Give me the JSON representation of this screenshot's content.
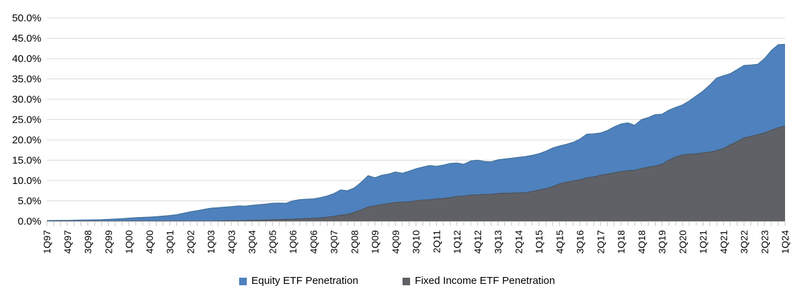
{
  "chart_data": {
    "type": "area",
    "stacked": true,
    "title": "",
    "background": "#ffffff",
    "grid": true,
    "gridline_color": "#d9d9d9",
    "axis_tick_color": "#c6c6c6",
    "text_color": "#000000",
    "categories": [
      "1Q97",
      "2Q97",
      "3Q97",
      "4Q97",
      "1Q98",
      "2Q98",
      "3Q98",
      "4Q98",
      "1Q99",
      "2Q99",
      "3Q99",
      "4Q99",
      "1Q00",
      "2Q00",
      "3Q00",
      "4Q00",
      "1Q01",
      "2Q01",
      "3Q01",
      "4Q01",
      "1Q02",
      "2Q02",
      "3Q02",
      "4Q02",
      "1Q03",
      "2Q03",
      "3Q03",
      "4Q03",
      "1Q04",
      "2Q04",
      "3Q04",
      "4Q04",
      "1Q05",
      "2Q05",
      "3Q05",
      "4Q05",
      "1Q06",
      "2Q06",
      "3Q06",
      "4Q06",
      "1Q07",
      "2Q07",
      "3Q07",
      "4Q07",
      "1Q08",
      "2Q08",
      "3Q08",
      "4Q08",
      "1Q09",
      "2Q09",
      "3Q09",
      "4Q09",
      "1Q10",
      "2Q10",
      "3Q10",
      "4Q10",
      "1Q11",
      "2Q11",
      "3Q11",
      "4Q11",
      "1Q12",
      "2Q12",
      "3Q12",
      "4Q12",
      "1Q13",
      "2Q13",
      "3Q13",
      "4Q13",
      "1Q14",
      "2Q14",
      "3Q14",
      "4Q14",
      "1Q15",
      "2Q15",
      "3Q15",
      "4Q15",
      "1Q16",
      "2Q16",
      "3Q16",
      "4Q16",
      "1Q17",
      "2Q17",
      "3Q17",
      "4Q17",
      "1Q18",
      "2Q18",
      "3Q18",
      "4Q18",
      "1Q19",
      "2Q19",
      "3Q19",
      "4Q19",
      "1Q20",
      "2Q20",
      "3Q20",
      "4Q20",
      "1Q21",
      "2Q21",
      "3Q21",
      "4Q21",
      "1Q22",
      "2Q22",
      "3Q22",
      "4Q22",
      "1Q23",
      "2Q23",
      "3Q23",
      "4Q23",
      "1Q24"
    ],
    "x_tick_labels": [
      "1Q97",
      "4Q97",
      "3Q98",
      "2Q99",
      "1Q00",
      "4Q00",
      "3Q01",
      "2Q02",
      "1Q03",
      "4Q03",
      "3Q04",
      "2Q05",
      "1Q06",
      "4Q06",
      "3Q07",
      "2Q08",
      "1Q09",
      "4Q09",
      "3Q10",
      "2Q11",
      "1Q12",
      "4Q12",
      "3Q13",
      "2Q14",
      "1Q15",
      "4Q15",
      "3Q16",
      "2Q17",
      "1Q18",
      "4Q18",
      "3Q19",
      "2Q20",
      "1Q21",
      "4Q21",
      "3Q22",
      "2Q23",
      "1Q24"
    ],
    "x_label_every": 3,
    "y_axis": {
      "min": 0,
      "max": 50,
      "step": 5,
      "unit": "%",
      "tick_labels": [
        "0.0%",
        "5.0%",
        "10.0%",
        "15.0%",
        "20.0%",
        "25.0%",
        "30.0%",
        "35.0%",
        "40.0%",
        "45.0%",
        "50.0%"
      ]
    },
    "stack_order_bottom_to_top": [
      "Fixed Income ETF Penetration",
      "Equity ETF Penetration"
    ],
    "series": [
      {
        "name": "Equity ETF Penetration",
        "color": "#4e81bd",
        "edge_color": "#41719c",
        "values": [
          0.15,
          0.17,
          0.19,
          0.21,
          0.24,
          0.27,
          0.3,
          0.34,
          0.38,
          0.45,
          0.52,
          0.62,
          0.75,
          0.85,
          0.93,
          1.0,
          1.1,
          1.25,
          1.4,
          1.6,
          1.95,
          2.3,
          2.6,
          2.9,
          3.2,
          3.25,
          3.37,
          3.5,
          3.63,
          3.55,
          3.7,
          3.8,
          3.92,
          4.05,
          4.05,
          3.95,
          4.5,
          4.7,
          4.75,
          4.8,
          5.0,
          5.2,
          5.6,
          6.2,
          5.8,
          6.0,
          6.8,
          7.7,
          6.9,
          7.2,
          7.25,
          7.5,
          7.1,
          7.5,
          7.9,
          8.1,
          8.4,
          8.0,
          8.2,
          8.4,
          8.2,
          7.8,
          8.4,
          8.5,
          8.1,
          8.0,
          8.3,
          8.4,
          8.6,
          8.7,
          8.9,
          8.9,
          8.9,
          9.2,
          9.5,
          9.3,
          9.3,
          9.5,
          10.0,
          10.7,
          10.6,
          10.4,
          10.7,
          11.3,
          11.7,
          11.8,
          11.1,
          12.0,
          12.2,
          12.6,
          12.3,
          12.3,
          12.2,
          12.3,
          13.1,
          14.2,
          15.2,
          16.5,
          17.8,
          17.9,
          17.5,
          17.7,
          17.8,
          17.5,
          17.3,
          18.3,
          19.6,
          20.4,
          20.1
        ]
      },
      {
        "name": "Fixed Income ETF Penetration",
        "color": "#5f6166",
        "edge_color": "#4c4e53",
        "values": [
          0,
          0,
          0,
          0,
          0,
          0,
          0,
          0,
          0,
          0,
          0,
          0,
          0,
          0,
          0,
          0,
          0,
          0,
          0,
          0,
          0,
          0,
          0,
          0,
          0,
          0.05,
          0.08,
          0.1,
          0.12,
          0.15,
          0.2,
          0.25,
          0.28,
          0.35,
          0.4,
          0.45,
          0.5,
          0.6,
          0.65,
          0.7,
          0.8,
          1.0,
          1.2,
          1.5,
          1.7,
          2.2,
          2.8,
          3.5,
          3.8,
          4.1,
          4.35,
          4.6,
          4.7,
          4.8,
          5.0,
          5.2,
          5.3,
          5.5,
          5.6,
          5.8,
          6.1,
          6.2,
          6.4,
          6.5,
          6.6,
          6.6,
          6.8,
          6.9,
          6.9,
          7.0,
          7.0,
          7.3,
          7.7,
          8.0,
          8.5,
          9.2,
          9.6,
          9.9,
          10.2,
          10.7,
          10.9,
          11.3,
          11.6,
          11.9,
          12.2,
          12.4,
          12.5,
          13.0,
          13.3,
          13.6,
          14.0,
          15.0,
          15.8,
          16.3,
          16.5,
          16.6,
          16.8,
          17.0,
          17.4,
          17.9,
          18.8,
          19.6,
          20.5,
          20.9,
          21.3,
          21.7,
          22.4,
          23.0,
          23.4
        ]
      }
    ],
    "legend": {
      "position": "bottom",
      "entries": [
        "Equity ETF Penetration",
        "Fixed Income ETF Penetration"
      ]
    }
  }
}
